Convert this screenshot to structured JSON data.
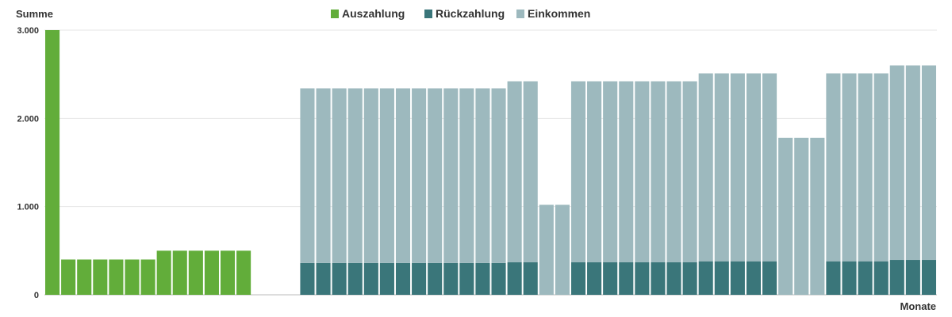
{
  "chart_data": {
    "type": "bar",
    "stacked": true,
    "ylabel": "Summe",
    "xlabel": "Monate",
    "ylim": [
      0,
      3000
    ],
    "yticks": [
      {
        "value": 0,
        "label": "0"
      },
      {
        "value": 1000,
        "label": "1.000"
      },
      {
        "value": 2000,
        "label": "2.000"
      },
      {
        "value": 3000,
        "label": "3.000"
      }
    ],
    "grid": true,
    "legend_position": "top-center",
    "months": 56,
    "series": [
      {
        "name": "Auszahlung",
        "color": "#62ad3a",
        "values": [
          3000,
          400,
          400,
          400,
          400,
          400,
          400,
          500,
          500,
          500,
          500,
          500,
          500,
          0,
          0,
          0,
          0,
          0,
          0,
          0,
          0,
          0,
          0,
          0,
          0,
          0,
          0,
          0,
          0,
          0,
          0,
          0,
          0,
          0,
          0,
          0,
          0,
          0,
          0,
          0,
          0,
          0,
          0,
          0,
          0,
          0,
          0,
          0,
          0,
          0,
          0,
          0,
          0,
          0,
          0,
          0
        ]
      },
      {
        "name": "Rückzahlung",
        "color": "#3a767a",
        "values": [
          0,
          0,
          0,
          0,
          0,
          0,
          0,
          0,
          0,
          0,
          0,
          0,
          0,
          0,
          0,
          0,
          360,
          360,
          360,
          360,
          360,
          360,
          360,
          360,
          360,
          360,
          360,
          360,
          360,
          370,
          370,
          0,
          0,
          370,
          370,
          370,
          370,
          370,
          370,
          370,
          370,
          380,
          380,
          380,
          380,
          380,
          0,
          0,
          0,
          380,
          380,
          380,
          380,
          395,
          395,
          395
        ]
      },
      {
        "name": "Einkommen",
        "color": "#9db9be",
        "values": [
          0,
          0,
          0,
          0,
          0,
          0,
          0,
          0,
          0,
          0,
          0,
          0,
          0,
          0,
          0,
          0,
          1980,
          1980,
          1980,
          1980,
          1980,
          1980,
          1980,
          1980,
          1980,
          1980,
          1980,
          1980,
          1980,
          2050,
          2050,
          1020,
          1020,
          2050,
          2050,
          2050,
          2050,
          2050,
          2050,
          2050,
          2050,
          2130,
          2130,
          2130,
          2130,
          2130,
          1780,
          1780,
          1780,
          2130,
          2130,
          2130,
          2130,
          2205,
          2205,
          2205
        ]
      }
    ]
  }
}
